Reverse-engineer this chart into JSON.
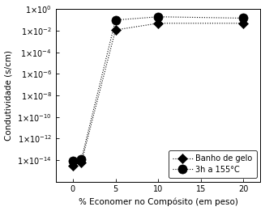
{
  "series": [
    {
      "label": "Banho de gelo",
      "x": [
        0,
        1,
        5,
        10,
        20
      ],
      "y": [
        3e-15,
        6e-15,
        0.012,
        0.05,
        0.05
      ],
      "marker_size": 6,
      "filled": true,
      "diamond": true
    },
    {
      "label": "3h a 155°C",
      "x": [
        0,
        1,
        5,
        10,
        20
      ],
      "y": [
        8e-15,
        1.2e-14,
        0.1,
        0.2,
        0.15
      ],
      "marker_size": 8,
      "filled": true,
      "diamond": false
    }
  ],
  "xlabel": "% Economer no Compósito (em peso)",
  "ylabel": "Condutividade (s/cm)",
  "xlim": [
    -2,
    22
  ],
  "ylim_log_min": -16,
  "ylim_log_max": 0,
  "xticks": [
    0,
    5,
    10,
    15,
    20
  ],
  "ytick_exponents": [
    0,
    -2,
    -4,
    -6,
    -8,
    -10,
    -12,
    -14
  ],
  "linestyle": "dotted",
  "color": "black",
  "fontsize_label": 7.5,
  "fontsize_tick": 7,
  "fontsize_legend": 7
}
